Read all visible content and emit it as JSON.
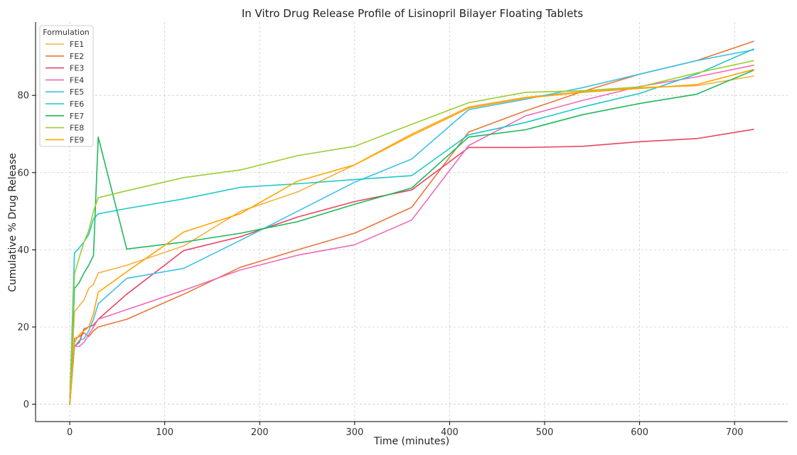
{
  "chart_data": {
    "type": "line",
    "title": "In Vitro Drug Release Profile of Lisinopril Bilayer Floating Tablets",
    "xlabel": "Time (minutes)",
    "ylabel": "Cumulative % Drug Release",
    "xlim": [
      -36,
      756
    ],
    "ylim": [
      -4.5,
      99
    ],
    "xticks": [
      0,
      100,
      200,
      300,
      400,
      500,
      600,
      700
    ],
    "yticks": [
      0,
      20,
      40,
      60,
      80
    ],
    "grid": true,
    "legend_title": "Formulation",
    "legend_position": "top-left",
    "series": [
      {
        "name": "FE1",
        "color": "#f5b041",
        "points": [
          [
            0,
            0
          ],
          [
            5,
            24
          ],
          [
            10,
            25.5
          ],
          [
            15,
            27
          ],
          [
            20,
            30
          ],
          [
            25,
            31
          ],
          [
            30,
            34
          ],
          [
            60,
            36
          ],
          [
            120,
            41
          ],
          [
            180,
            50
          ],
          [
            240,
            55
          ],
          [
            300,
            62
          ],
          [
            360,
            70
          ],
          [
            420,
            77
          ],
          [
            480,
            79.5
          ],
          [
            540,
            81
          ],
          [
            600,
            82
          ],
          [
            660,
            82.5
          ],
          [
            720,
            85
          ]
        ]
      },
      {
        "name": "FE2",
        "color": "#e8773a",
        "points": [
          [
            0,
            0
          ],
          [
            5,
            17
          ],
          [
            10,
            17.5
          ],
          [
            15,
            18.5
          ],
          [
            20,
            17.5
          ],
          [
            25,
            19
          ],
          [
            30,
            20
          ],
          [
            60,
            22
          ],
          [
            120,
            28.5
          ],
          [
            180,
            35.5
          ],
          [
            240,
            40
          ],
          [
            300,
            44.3
          ],
          [
            360,
            51
          ],
          [
            420,
            70.5
          ],
          [
            480,
            76
          ],
          [
            540,
            81
          ],
          [
            600,
            85.5
          ],
          [
            660,
            89
          ],
          [
            720,
            94
          ]
        ]
      },
      {
        "name": "FE3",
        "color": "#e8455e",
        "points": [
          [
            0,
            0
          ],
          [
            5,
            15
          ],
          [
            10,
            16
          ],
          [
            15,
            19.5
          ],
          [
            20,
            20
          ],
          [
            25,
            20.5
          ],
          [
            30,
            22
          ],
          [
            60,
            28.5
          ],
          [
            120,
            39.8
          ],
          [
            180,
            43.4
          ],
          [
            240,
            48.5
          ],
          [
            300,
            52.5
          ],
          [
            360,
            55.5
          ],
          [
            420,
            66.5
          ],
          [
            480,
            66.5
          ],
          [
            540,
            66.8
          ],
          [
            600,
            68
          ],
          [
            660,
            68.8
          ],
          [
            720,
            71.2
          ]
        ]
      },
      {
        "name": "FE4",
        "color": "#f06ab8",
        "points": [
          [
            0,
            0
          ],
          [
            5,
            15
          ],
          [
            10,
            15
          ],
          [
            15,
            16
          ],
          [
            20,
            18
          ],
          [
            25,
            20
          ],
          [
            30,
            22
          ],
          [
            60,
            24.5
          ],
          [
            120,
            29.5
          ],
          [
            180,
            34.8
          ],
          [
            240,
            38.6
          ],
          [
            300,
            41.3
          ],
          [
            360,
            47.7
          ],
          [
            420,
            67
          ],
          [
            480,
            74.7
          ],
          [
            540,
            78.7
          ],
          [
            600,
            82.3
          ],
          [
            660,
            84.8
          ],
          [
            720,
            87.8
          ]
        ]
      },
      {
        "name": "FE5",
        "color": "#3ec0ea",
        "points": [
          [
            0,
            0
          ],
          [
            5,
            15
          ],
          [
            10,
            16.5
          ],
          [
            15,
            17
          ],
          [
            20,
            19
          ],
          [
            25,
            22
          ],
          [
            30,
            26
          ],
          [
            60,
            32.6
          ],
          [
            120,
            35.2
          ],
          [
            180,
            42.5
          ],
          [
            240,
            50
          ],
          [
            300,
            57.5
          ],
          [
            360,
            63.5
          ],
          [
            420,
            76.3
          ],
          [
            480,
            79
          ],
          [
            540,
            82
          ],
          [
            600,
            85.5
          ],
          [
            660,
            89
          ],
          [
            720,
            91.8
          ]
        ]
      },
      {
        "name": "FE6",
        "color": "#1fc8c8",
        "points": [
          [
            0,
            0
          ],
          [
            5,
            39.2
          ],
          [
            10,
            40.5
          ],
          [
            15,
            42
          ],
          [
            20,
            44
          ],
          [
            25,
            48
          ],
          [
            30,
            49.3
          ],
          [
            60,
            50.7
          ],
          [
            120,
            53.2
          ],
          [
            180,
            56.2
          ],
          [
            240,
            57.1
          ],
          [
            300,
            58.2
          ],
          [
            360,
            59.2
          ],
          [
            420,
            69.8
          ],
          [
            480,
            73
          ],
          [
            540,
            77
          ],
          [
            600,
            80.5
          ],
          [
            660,
            85.5
          ],
          [
            720,
            92
          ]
        ]
      },
      {
        "name": "FE7",
        "color": "#1fb85a",
        "points": [
          [
            0,
            0
          ],
          [
            5,
            30
          ],
          [
            10,
            31.5
          ],
          [
            15,
            34
          ],
          [
            20,
            36
          ],
          [
            25,
            38.5
          ],
          [
            30,
            69.2
          ],
          [
            60,
            40.2
          ],
          [
            120,
            42
          ],
          [
            180,
            44.3
          ],
          [
            240,
            47.3
          ],
          [
            300,
            51.8
          ],
          [
            360,
            56
          ],
          [
            420,
            69.2
          ],
          [
            480,
            71.1
          ],
          [
            540,
            75
          ],
          [
            600,
            77.9
          ],
          [
            660,
            80.3
          ],
          [
            720,
            86.5
          ]
        ]
      },
      {
        "name": "FE8",
        "color": "#9acd32",
        "points": [
          [
            0,
            0
          ],
          [
            5,
            33.8
          ],
          [
            10,
            38
          ],
          [
            15,
            42
          ],
          [
            20,
            45
          ],
          [
            25,
            50
          ],
          [
            30,
            53.5
          ],
          [
            60,
            55.3
          ],
          [
            120,
            58.7
          ],
          [
            180,
            60.7
          ],
          [
            240,
            64.4
          ],
          [
            300,
            66.8
          ],
          [
            360,
            72.5
          ],
          [
            420,
            78.1
          ],
          [
            480,
            80.8
          ],
          [
            540,
            81.2
          ],
          [
            600,
            82.2
          ],
          [
            660,
            85.8
          ],
          [
            720,
            89
          ]
        ]
      },
      {
        "name": "FE9",
        "color": "#ffa500",
        "points": [
          [
            0,
            0
          ],
          [
            5,
            16
          ],
          [
            10,
            18
          ],
          [
            15,
            19
          ],
          [
            20,
            20
          ],
          [
            25,
            23.5
          ],
          [
            30,
            29
          ],
          [
            60,
            34.3
          ],
          [
            120,
            44.6
          ],
          [
            180,
            49.4
          ],
          [
            240,
            57.8
          ],
          [
            300,
            62
          ],
          [
            360,
            69.6
          ],
          [
            420,
            76.7
          ],
          [
            480,
            79.3
          ],
          [
            540,
            80.8
          ],
          [
            600,
            81.8
          ],
          [
            660,
            82.8
          ],
          [
            720,
            86.7
          ]
        ]
      }
    ]
  }
}
